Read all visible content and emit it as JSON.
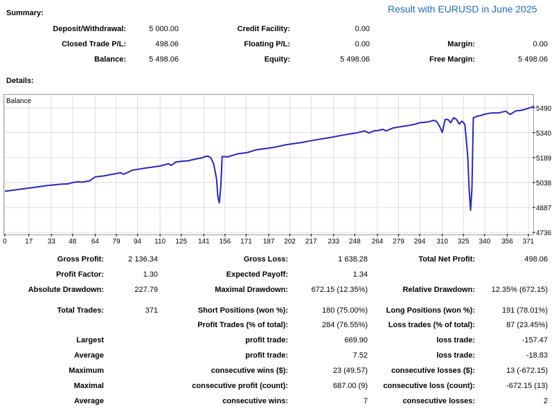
{
  "title": "Result with EURUSD in June 2025",
  "summary": {
    "heading": "Summary:",
    "rows": [
      [
        {
          "label": "Deposit/Withdrawal:",
          "value": "5 000.00"
        },
        {
          "label": "Credit Facility:",
          "value": "0.00"
        },
        {
          "label": "",
          "value": ""
        }
      ],
      [
        {
          "label": "Closed Trade P/L:",
          "value": "498.06"
        },
        {
          "label": "Floating P/L:",
          "value": "0.00"
        },
        {
          "label": "Margin:",
          "value": "0.00"
        }
      ],
      [
        {
          "label": "Balance:",
          "value": "5 498.06"
        },
        {
          "label": "Equity:",
          "value": "5 498.06"
        },
        {
          "label": "Free Margin:",
          "value": "5 498.06"
        }
      ]
    ]
  },
  "details": {
    "heading": "Details:"
  },
  "chart_data": {
    "type": "line",
    "series_label": "Balance",
    "ylim": [
      4736,
      5490
    ],
    "xlim": [
      0,
      375
    ],
    "y_ticks": [
      5490,
      5340,
      5189,
      5038,
      4887,
      4736
    ],
    "x_ticks": [
      0,
      17,
      33,
      48,
      64,
      79,
      94,
      110,
      125,
      141,
      156,
      171,
      187,
      202,
      217,
      233,
      248,
      264,
      279,
      294,
      310,
      325,
      340,
      356,
      371
    ],
    "grid": true,
    "line_color": "#2424c8",
    "series": [
      {
        "x": [
          0,
          10,
          20,
          30,
          40,
          45,
          48,
          52,
          55,
          60,
          64,
          70,
          75,
          79,
          82,
          84,
          88,
          90,
          94,
          100,
          110,
          116,
          118,
          121,
          125,
          130,
          135,
          140,
          142,
          144,
          146,
          148,
          150,
          151,
          152,
          153,
          154,
          158,
          165,
          172,
          178,
          190,
          200,
          210,
          220,
          230,
          240,
          250,
          255,
          258,
          262,
          264,
          268,
          270,
          275,
          279,
          285,
          290,
          294,
          300,
          304,
          306,
          308,
          310,
          312,
          314,
          316,
          318,
          320,
          322,
          324,
          326,
          328,
          329,
          330,
          331,
          332,
          335,
          338,
          340,
          345,
          350,
          355,
          358,
          362,
          365,
          368,
          372,
          375
        ],
        "y": [
          4985,
          4997,
          5008,
          5020,
          5028,
          5030,
          5038,
          5042,
          5040,
          5048,
          5072,
          5078,
          5086,
          5092,
          5098,
          5088,
          5103,
          5112,
          5118,
          5126,
          5138,
          5152,
          5142,
          5162,
          5166,
          5170,
          5180,
          5188,
          5196,
          5198,
          5188,
          5150,
          5060,
          4950,
          4915,
          5010,
          5196,
          5194,
          5212,
          5220,
          5236,
          5250,
          5268,
          5280,
          5296,
          5310,
          5326,
          5340,
          5350,
          5338,
          5352,
          5352,
          5360,
          5350,
          5368,
          5374,
          5382,
          5390,
          5400,
          5405,
          5415,
          5408,
          5380,
          5342,
          5420,
          5420,
          5400,
          5430,
          5420,
          5392,
          5410,
          5390,
          5200,
          5000,
          4870,
          5000,
          5430,
          5440,
          5445,
          5452,
          5460,
          5460,
          5470,
          5450,
          5472,
          5474,
          5480,
          5490,
          5500
        ]
      }
    ]
  },
  "stats": {
    "gross_profit": {
      "label": "Gross Profit:",
      "value": "2 136.34"
    },
    "gross_loss": {
      "label": "Gross Loss:",
      "value": "1 638.28"
    },
    "total_net_profit": {
      "label": "Total Net Profit:",
      "value": "498.06"
    },
    "profit_factor": {
      "label": "Profit Factor:",
      "value": "1.30"
    },
    "expected_payoff": {
      "label": "Expected Payoff:",
      "value": "1.34"
    },
    "absolute_drawdown": {
      "label": "Absolute Drawdown:",
      "value": "227.79"
    },
    "maximal_drawdown": {
      "label": "Maximal Drawdown:",
      "value": "672.15 (12.35%)"
    },
    "relative_drawdown": {
      "label": "Relative Drawdown:",
      "value": "12.35% (672.15)"
    },
    "total_trades": {
      "label": "Total Trades:",
      "value": "371"
    },
    "short_positions": {
      "label": "Short Positions (won %):",
      "value": "180 (75.00%)"
    },
    "long_positions": {
      "label": "Long Positions (won %):",
      "value": "191 (78.01%)"
    },
    "profit_trades": {
      "label": "Profit Trades (% of total):",
      "value": "284 (76.55%)"
    },
    "loss_trades": {
      "label": "Loss trades (% of total):",
      "value": "87 (23.45%)"
    },
    "rows": [
      {
        "group": "Largest",
        "p_label": "profit trade:",
        "p_value": "669.90",
        "l_label": "loss trade:",
        "l_value": "-157.47"
      },
      {
        "group": "Average",
        "p_label": "profit trade:",
        "p_value": "7.52",
        "l_label": "loss trade:",
        "l_value": "-18.83"
      },
      {
        "group": "Maximum",
        "p_label": "consecutive wins ($):",
        "p_value": "23 (49.57)",
        "l_label": "consecutive losses ($):",
        "l_value": "13 (-672.15)"
      },
      {
        "group": "Maximal",
        "p_label": "consecutive profit (count):",
        "p_value": "687.00 (9)",
        "l_label": "consecutive loss (count):",
        "l_value": "-672.15 (13)"
      },
      {
        "group": "Average",
        "p_label": "consecutive wins:",
        "p_value": "7",
        "l_label": "consecutive losses:",
        "l_value": "2"
      }
    ]
  }
}
